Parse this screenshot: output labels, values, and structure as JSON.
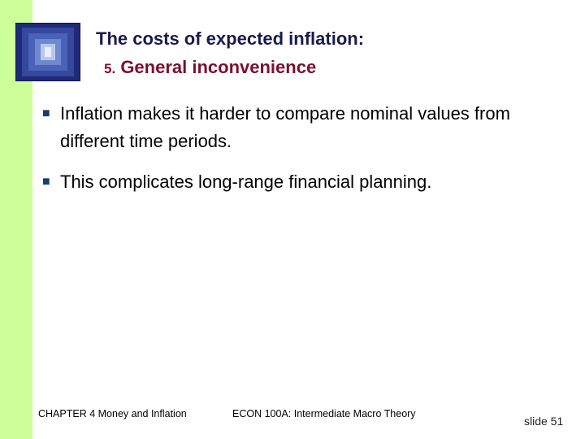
{
  "title": {
    "line1": "The costs of expected inflation:",
    "line2_number": "5.",
    "line2_text": "General inconvenience"
  },
  "bullets": [
    "Inflation makes it harder to compare nominal values from different time periods.",
    "This complicates long-range financial planning."
  ],
  "footer": {
    "chapter": "CHAPTER 4   Money and Inflation",
    "course": "ECON 100A: Intermediate Macro Theory",
    "slide": "slide 51"
  },
  "colors": {
    "side_bar": "#ccff99",
    "title_line1": "#1a1a4e",
    "title_line2": "#7a1030",
    "logo_blue": "#2b3a9c"
  },
  "icons": {
    "logo": "square-tunnel-icon",
    "bullet": "square-bullet-icon"
  }
}
